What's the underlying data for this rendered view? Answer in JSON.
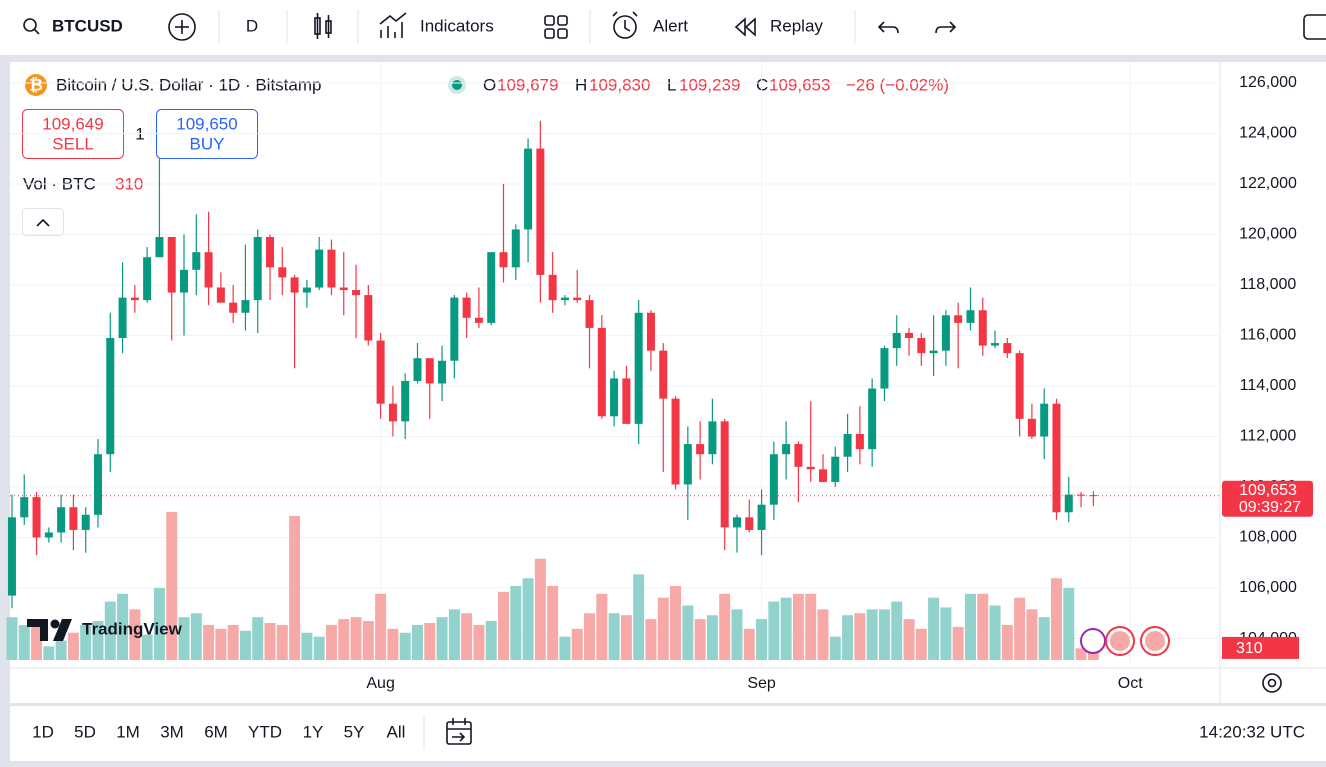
{
  "toolbar": {
    "symbol": "BTCUSD",
    "interval": "D",
    "indicators": "Indicators",
    "alert": "Alert",
    "replay": "Replay"
  },
  "legend": {
    "title": "Bitcoin / U.S. Dollar · 1D · Bitstamp",
    "o": "O",
    "open": "109,679",
    "h": "H",
    "high": "109,830",
    "l": "L",
    "low": "109,239",
    "c": "C",
    "close": "109,653",
    "change": "−26 (−0.02%)"
  },
  "trade": {
    "sell_price": "109,649",
    "sell": "SELL",
    "spread": "1",
    "buy_price": "109,650",
    "buy": "BUY"
  },
  "volume_legend": {
    "label": "Vol · BTC"
  },
  "chart_data": {
    "type": "candlestick",
    "open": [
      105700,
      108800,
      109600,
      108000,
      108200,
      109200,
      108300,
      108900,
      111300,
      115900,
      117500,
      117400,
      119100,
      119900,
      117700,
      118600,
      119300,
      117900,
      117300,
      116900,
      117400,
      119900,
      118700,
      118300,
      117700,
      117900,
      119400,
      117900,
      117800,
      117600,
      115800,
      113300,
      112600,
      114200,
      115100,
      114100,
      115000,
      117500,
      116700,
      116500,
      119300,
      118700,
      120200,
      123400,
      118400,
      117400,
      117500,
      117400,
      116300,
      112800,
      114300,
      112500,
      116900,
      115400,
      113500,
      110100,
      111700,
      111300,
      112600,
      108400,
      108800,
      108300,
      109300,
      111300,
      111700,
      110800,
      110700,
      110200,
      111200,
      112100,
      111500,
      113900,
      115500,
      116100,
      115900,
      115300,
      115400,
      116800,
      116500,
      117000,
      115600,
      115700,
      115300,
      112700,
      112000,
      113300,
      109000,
      109700,
      109679
    ],
    "high": [
      109700,
      110500,
      109800,
      108400,
      109700,
      109700,
      109200,
      111900,
      116900,
      118900,
      118000,
      119500,
      123000,
      119900,
      120000,
      120800,
      120900,
      118500,
      118000,
      119600,
      120200,
      120000,
      119500,
      118400,
      118200,
      119900,
      119800,
      119300,
      118800,
      118000,
      116100,
      114000,
      114500,
      115700,
      115100,
      115600,
      117600,
      117700,
      117900,
      119300,
      122000,
      120400,
      123800,
      124500,
      119300,
      117600,
      118600,
      117600,
      116800,
      114600,
      114800,
      117400,
      117000,
      115700,
      113600,
      112400,
      112600,
      113500,
      112700,
      108900,
      109500,
      109900,
      111800,
      112600,
      111800,
      113400,
      111300,
      111600,
      112900,
      113200,
      114300,
      115600,
      116800,
      116300,
      116100,
      116800,
      117000,
      117300,
      117900,
      117500,
      116200,
      115900,
      115400,
      113300,
      113900,
      113500,
      110400,
      109800,
      109830
    ],
    "low": [
      105200,
      108500,
      107300,
      107800,
      107800,
      107500,
      107400,
      108400,
      110600,
      115300,
      116900,
      117300,
      119100,
      115800,
      116000,
      117600,
      117200,
      117300,
      116500,
      116200,
      116100,
      117400,
      117600,
      114700,
      117100,
      117800,
      117600,
      116800,
      115900,
      115600,
      112700,
      112000,
      111900,
      114100,
      112700,
      113400,
      114300,
      115900,
      116300,
      116400,
      118100,
      118200,
      118900,
      117300,
      116900,
      117200,
      117300,
      114700,
      112700,
      112400,
      112600,
      111700,
      114600,
      110600,
      109900,
      108700,
      110300,
      110900,
      107500,
      107400,
      108200,
      107300,
      108700,
      110300,
      109400,
      110200,
      110200,
      110000,
      110600,
      110900,
      110800,
      113400,
      114800,
      115200,
      114800,
      114400,
      114800,
      114700,
      116200,
      115200,
      115500,
      115100,
      112000,
      111900,
      111100,
      108700,
      108600,
      109200,
      109239
    ],
    "close": [
      108800,
      109600,
      108000,
      108200,
      109200,
      108300,
      108900,
      111300,
      115900,
      117500,
      117400,
      119100,
      119900,
      117700,
      118600,
      119300,
      117900,
      117300,
      116900,
      117400,
      119900,
      118700,
      118300,
      117700,
      117900,
      119400,
      117900,
      117800,
      117600,
      115800,
      113300,
      112600,
      114200,
      115100,
      114100,
      115000,
      117500,
      116700,
      116500,
      119300,
      118700,
      120200,
      123400,
      118400,
      117400,
      117500,
      117400,
      116300,
      112800,
      114300,
      112500,
      116900,
      115400,
      113500,
      110100,
      111700,
      111300,
      112600,
      108400,
      108800,
      108300,
      109300,
      111300,
      111700,
      110800,
      110700,
      110200,
      111200,
      112100,
      111500,
      113900,
      115500,
      116100,
      115900,
      115300,
      115400,
      116800,
      116500,
      117000,
      115600,
      115700,
      115300,
      112700,
      112000,
      113300,
      109000,
      109700,
      109679,
      109653
    ],
    "volume": [
      1100,
      900,
      850,
      350,
      500,
      700,
      900,
      1000,
      1500,
      1700,
      1300,
      650,
      1850,
      3800,
      1100,
      1200,
      900,
      800,
      900,
      750,
      1100,
      950,
      900,
      3700,
      700,
      600,
      900,
      1050,
      1100,
      1000,
      1700,
      800,
      700,
      900,
      950,
      1100,
      1300,
      1200,
      900,
      1000,
      1750,
      1900,
      2100,
      2600,
      1900,
      600,
      800,
      1200,
      1700,
      1200,
      1150,
      2200,
      1050,
      1600,
      1900,
      1400,
      1050,
      1150,
      1700,
      1300,
      800,
      1050,
      1500,
      1600,
      1700,
      1700,
      1300,
      600,
      1150,
      1200,
      1300,
      1300,
      1500,
      1050,
      800,
      1600,
      1350,
      850,
      1700,
      1700,
      1400,
      900,
      1600,
      1300,
      1100,
      2100,
      1850,
      300,
      310
    ],
    "xlim": [
      -0.16,
      97.9
    ],
    "xticks": [
      {
        "value": 30,
        "label": "Aug"
      },
      {
        "value": 61,
        "label": "Sep"
      },
      {
        "value": 91,
        "label": "Oct"
      }
    ],
    "ylim": [
      103150,
      126830
    ],
    "yticks": [
      {
        "value": 104000,
        "label": "104,000"
      },
      {
        "value": 106000,
        "label": "106,000"
      },
      {
        "value": 108000,
        "label": "108,000"
      },
      {
        "value": 110000,
        "label": "110,000"
      },
      {
        "value": 112000,
        "label": "112,000"
      },
      {
        "value": 114000,
        "label": "114,000"
      },
      {
        "value": 116000,
        "label": "116,000"
      },
      {
        "value": 118000,
        "label": "118,000"
      },
      {
        "value": 120000,
        "label": "120,000"
      },
      {
        "value": 122000,
        "label": "122,000"
      },
      {
        "value": 124000,
        "label": "124,000"
      },
      {
        "value": 126000,
        "label": "126,000"
      }
    ],
    "grid": true,
    "up_color": "#089981",
    "down_color": "#f23645",
    "volume_up_color": "#92d2cc",
    "volume_down_color": "#f7a9a7",
    "last_label": "109,653",
    "countdown": "09:39:27",
    "watermark": "TradingView"
  },
  "periods": [
    "1D",
    "5D",
    "1M",
    "3M",
    "6M",
    "YTD",
    "1Y",
    "5Y",
    "All"
  ],
  "clock": "14:20:32 UTC"
}
